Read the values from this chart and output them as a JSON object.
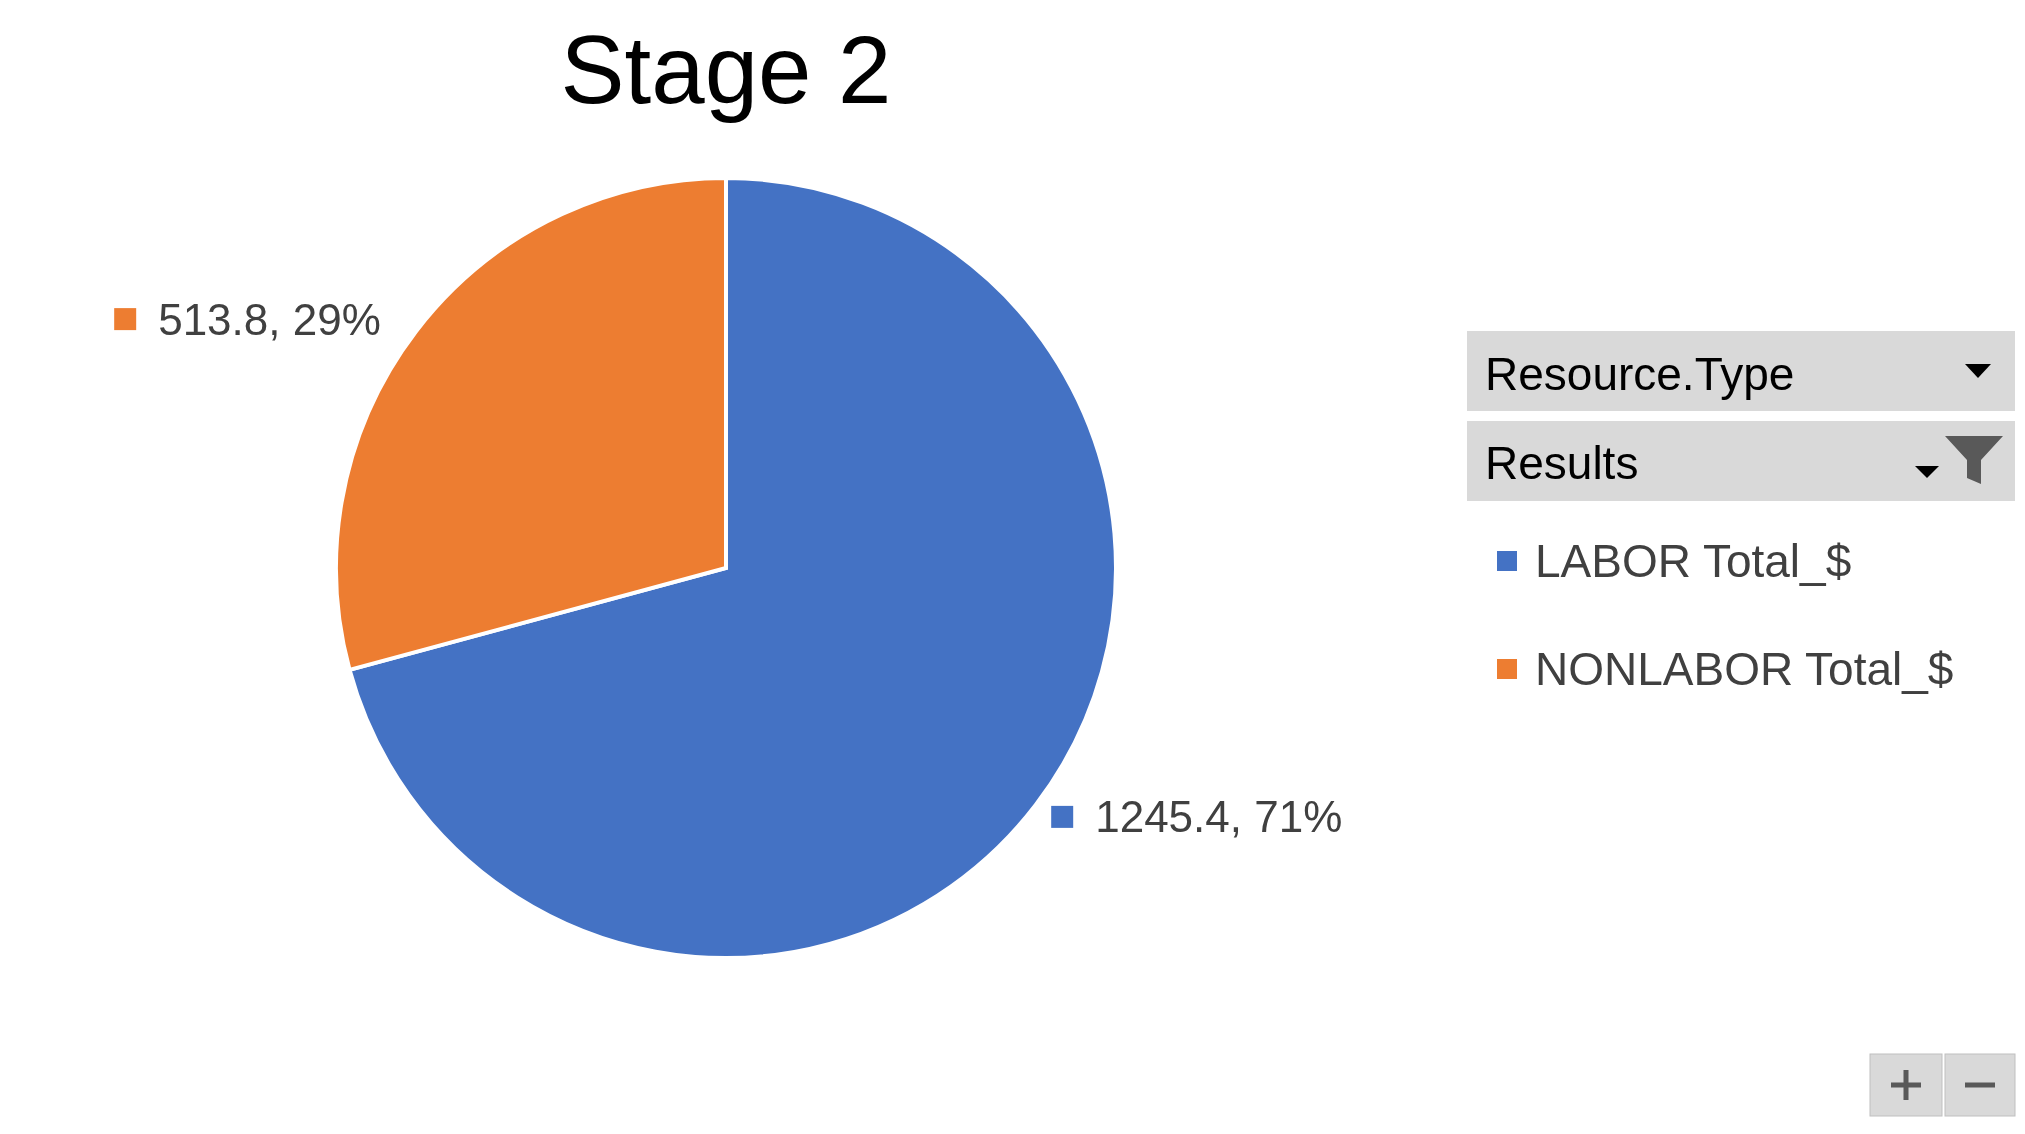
{
  "chart_data": {
    "type": "pie",
    "title": "Stage 2",
    "categories": [
      "LABOR Total_$",
      "NONLABOR Total_$"
    ],
    "values": [
      1245.4,
      513.8
    ],
    "colors": [
      "#4472c4",
      "#ed7d31"
    ],
    "value_labels": [
      "1245.4, 71%",
      "513.8, 29%"
    ],
    "legend": "right",
    "legend_title": "Resource.Type",
    "annotations": [
      "Results"
    ]
  }
}
